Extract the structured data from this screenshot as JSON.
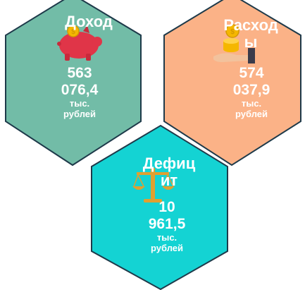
{
  "cards": {
    "income": {
      "title": "Доход",
      "amount_line1": "563",
      "amount_line2": "076,4",
      "unit_line1": "тыс.",
      "unit_line2": "рублей",
      "fill": "#72bca7",
      "icon": "piggy-bank-icon"
    },
    "expense": {
      "title": "Расход\nы",
      "title_line1": "Расход",
      "title_line2": "ы",
      "amount_line1": "574",
      "amount_line2": "037,9",
      "unit_line1": "тыс.",
      "unit_line2": "рублей",
      "fill": "#fbb287",
      "icon": "coins-hand-icon"
    },
    "deficit": {
      "title_line1": "Дефиц",
      "title_line2": "ит",
      "amount_line1": "10",
      "amount_line2": "961,5",
      "unit_line1": "тыс.",
      "unit_line2": "рублей",
      "fill": "#14d3d3",
      "icon": "scales-icon"
    }
  },
  "colors": {
    "stroke": "#1e3a4a",
    "text": "#ffffff",
    "piggy": "#e03548",
    "coin": "#f5b700"
  }
}
